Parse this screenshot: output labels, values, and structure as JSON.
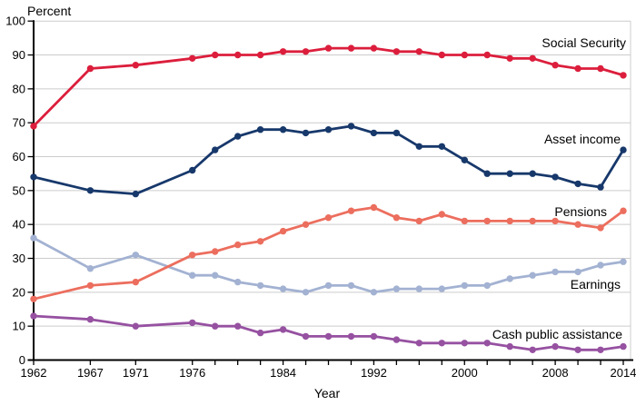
{
  "chart_data": {
    "type": "line",
    "title": "",
    "ylabel": "Percent",
    "xlabel": "Year",
    "ylim": [
      0,
      100
    ],
    "xlim": [
      1962,
      2014
    ],
    "grid": true,
    "grid_color": "#cccccc",
    "axis_color": "#000000",
    "legend_position": "inline-right-of-each-line",
    "x": [
      1962,
      1967,
      1971,
      1976,
      1978,
      1980,
      1982,
      1984,
      1986,
      1988,
      1990,
      1992,
      1994,
      1996,
      1998,
      2000,
      2002,
      2004,
      2006,
      2008,
      2010,
      2012,
      2014
    ],
    "x_tick_labels": [
      1962,
      1967,
      1971,
      1976,
      1984,
      1992,
      2000,
      2008,
      2014
    ],
    "y_ticks": [
      0,
      10,
      20,
      30,
      40,
      50,
      60,
      70,
      80,
      90,
      100
    ],
    "series": [
      {
        "name": "Earnings",
        "color": "#a3b2d2",
        "values": [
          36,
          27,
          31,
          25,
          25,
          23,
          22,
          21,
          20,
          22,
          22,
          20,
          21,
          21,
          21,
          22,
          22,
          24,
          25,
          26,
          26,
          28,
          29
        ]
      },
      {
        "name": "Pensions",
        "color": "#ec6e5e",
        "values": [
          18,
          22,
          23,
          31,
          32,
          34,
          35,
          38,
          40,
          42,
          44,
          45,
          42,
          41,
          43,
          41,
          41,
          41,
          41,
          41,
          40,
          39,
          44
        ]
      },
      {
        "name": "Cash public assistance",
        "color": "#9651a1",
        "values": [
          13,
          12,
          10,
          11,
          10,
          10,
          8,
          9,
          7,
          7,
          7,
          7,
          6,
          5,
          5,
          5,
          5,
          4,
          3,
          4,
          3,
          3,
          4
        ]
      },
      {
        "name": "Asset income",
        "color": "#17386b",
        "values": [
          54,
          50,
          49,
          56,
          62,
          66,
          68,
          68,
          67,
          68,
          69,
          67,
          67,
          63,
          63,
          59,
          55,
          55,
          55,
          54,
          52,
          51,
          62
        ]
      },
      {
        "name": "Social Security",
        "color": "#dc1e3c",
        "values": [
          69,
          86,
          87,
          89,
          90,
          90,
          90,
          91,
          91,
          92,
          92,
          92,
          91,
          91,
          90,
          90,
          90,
          89,
          89,
          87,
          86,
          86,
          84
        ]
      }
    ]
  }
}
